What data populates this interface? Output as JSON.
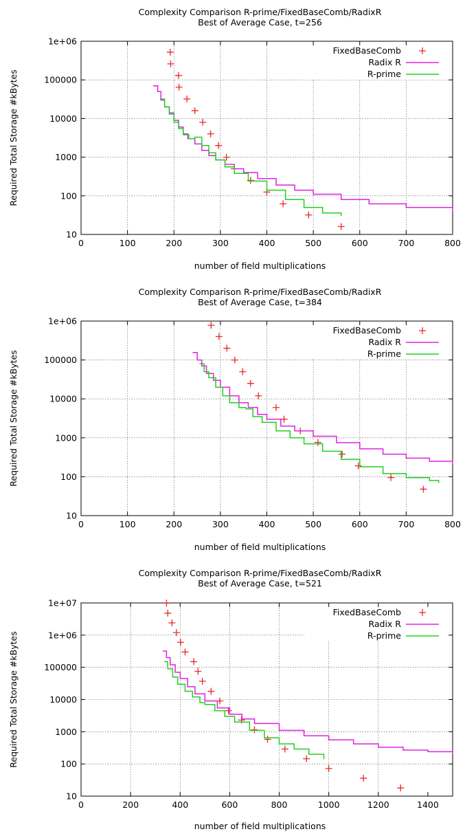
{
  "chart_data": [
    {
      "type": "scatter",
      "title": "Complexity Comparison R-prime/FixedBaseComb/RadixR",
      "subtitle": "Best of Average Case, t=256",
      "xlabel": "number of field multiplications",
      "ylabel": "Required Total Storage #kBytes",
      "xlim": [
        0,
        800
      ],
      "ylim": [
        10,
        1000000
      ],
      "yscale": "log",
      "xticks": [
        0,
        100,
        200,
        300,
        400,
        500,
        600,
        700,
        800
      ],
      "xtick_labels": [
        "0",
        "100",
        "200",
        "300",
        "400",
        "500",
        "600",
        "700",
        "800"
      ],
      "yticks": [
        10,
        100,
        1000,
        10000,
        100000,
        1000000
      ],
      "ytick_labels": [
        "10",
        "100",
        "1000",
        "10000",
        "100000",
        "1e+06"
      ],
      "grid": true,
      "legend": "top-right",
      "series": [
        {
          "name": "FixedBaseComb",
          "style": "points",
          "color": "#e8282a",
          "x": [
            192,
            193,
            210,
            211,
            228,
            245,
            262,
            279,
            296,
            313,
            330,
            365,
            400,
            435,
            490,
            560
          ],
          "y": [
            520000,
            260000,
            130000,
            65000,
            32000,
            16000,
            8000,
            4000,
            2000,
            1000,
            500,
            250,
            125,
            62,
            32,
            16
          ]
        },
        {
          "name": "Radix R",
          "style": "line",
          "color": "#e020e0",
          "x": [
            155,
            165,
            172,
            180,
            190,
            200,
            210,
            220,
            230,
            245,
            260,
            275,
            290,
            310,
            330,
            350,
            380,
            420,
            460,
            500,
            560,
            620,
            700,
            800
          ],
          "y": [
            70000,
            50000,
            30000,
            20000,
            14000,
            9000,
            6000,
            4000,
            3000,
            2200,
            1500,
            1100,
            850,
            650,
            500,
            400,
            280,
            190,
            140,
            110,
            80,
            62,
            50,
            41
          ]
        },
        {
          "name": "R-prime",
          "style": "line",
          "color": "#20d020",
          "x": [
            170,
            180,
            190,
            200,
            210,
            220,
            232,
            245,
            260,
            275,
            290,
            310,
            330,
            360,
            400,
            440,
            480,
            520,
            560
          ],
          "y": [
            32000,
            20000,
            13000,
            8000,
            5500,
            3800,
            3000,
            3300,
            2000,
            1300,
            850,
            560,
            380,
            240,
            140,
            80,
            50,
            36,
            30
          ]
        }
      ]
    },
    {
      "type": "scatter",
      "title": "Complexity Comparison R-prime/FixedBaseComb/RadixR",
      "subtitle": "Best of Average Case, t=384",
      "xlabel": "number of field multiplications",
      "ylabel": "Required Total Storage #kBytes",
      "xlim": [
        0,
        800
      ],
      "ylim": [
        10,
        1000000
      ],
      "yscale": "log",
      "xticks": [
        0,
        100,
        200,
        300,
        400,
        500,
        600,
        700,
        800
      ],
      "xtick_labels": [
        "0",
        "100",
        "200",
        "300",
        "400",
        "500",
        "600",
        "700",
        "800"
      ],
      "yticks": [
        10,
        100,
        1000,
        10000,
        100000,
        1000000
      ],
      "ytick_labels": [
        "10",
        "100",
        "1000",
        "10000",
        "100000",
        "1e+06"
      ],
      "grid": true,
      "legend": "top-right",
      "series": [
        {
          "name": "FixedBaseComb",
          "style": "points",
          "color": "#e8282a",
          "x": [
            280,
            297,
            314,
            331,
            348,
            365,
            382,
            420,
            437,
            472,
            510,
            562,
            597,
            667,
            737
          ],
          "y": [
            780000,
            400000,
            200000,
            100000,
            50000,
            25000,
            12000,
            6000,
            3000,
            1500,
            760,
            380,
            190,
            95,
            48
          ]
        },
        {
          "name": "Radix R",
          "style": "line",
          "color": "#e020e0",
          "x": [
            240,
            250,
            260,
            270,
            285,
            300,
            320,
            340,
            360,
            380,
            400,
            430,
            460,
            500,
            550,
            600,
            650,
            700,
            750,
            800
          ],
          "y": [
            155000,
            100000,
            70000,
            45000,
            30000,
            20000,
            12000,
            8000,
            6000,
            4000,
            3000,
            2000,
            1500,
            1100,
            750,
            520,
            380,
            300,
            250,
            210
          ]
        },
        {
          "name": "R-prime",
          "style": "line",
          "color": "#20d020",
          "x": [
            255,
            265,
            275,
            290,
            305,
            320,
            340,
            355,
            370,
            390,
            420,
            450,
            480,
            520,
            560,
            600,
            650,
            700,
            750,
            770
          ],
          "y": [
            80000,
            50000,
            35000,
            20000,
            12000,
            8000,
            6000,
            5500,
            3500,
            2500,
            1500,
            1000,
            700,
            450,
            280,
            180,
            120,
            95,
            80,
            70
          ]
        }
      ]
    },
    {
      "type": "scatter",
      "title": "Complexity Comparison R-prime/FixedBaseComb/RadixR",
      "subtitle": "Best of Average Case, t=521",
      "xlabel": "number of field multiplications",
      "ylabel": "Required Total Storage #kBytes",
      "xlim": [
        0,
        1500
      ],
      "ylim": [
        10,
        10000000
      ],
      "yscale": "log",
      "xticks": [
        0,
        200,
        400,
        600,
        800,
        1000,
        1200,
        1400
      ],
      "xtick_labels": [
        "0",
        "200",
        "400",
        "600",
        "800",
        "1000",
        "1200",
        "1400"
      ],
      "yticks": [
        10,
        100,
        1000,
        10000,
        100000,
        1000000,
        10000000
      ],
      "ytick_labels": [
        "10",
        "100",
        "1000",
        "10000",
        "100000",
        "1e+06",
        "1e+07"
      ],
      "grid": true,
      "legend": "top-right",
      "series": [
        {
          "name": "FixedBaseComb",
          "style": "points",
          "color": "#e8282a",
          "x": [
            345,
            350,
            367,
            385,
            402,
            420,
            455,
            472,
            490,
            525,
            560,
            595,
            648,
            700,
            753,
            823,
            910,
            1000,
            1140,
            1290
          ],
          "y": [
            9800000,
            4800000,
            2400000,
            1200000,
            600000,
            300000,
            150000,
            75000,
            37000,
            18000,
            9000,
            4500,
            2300,
            1150,
            580,
            290,
            145,
            72,
            36,
            18
          ]
        },
        {
          "name": "Radix R",
          "style": "line",
          "color": "#e020e0",
          "x": [
            330,
            345,
            360,
            380,
            400,
            430,
            460,
            500,
            550,
            600,
            650,
            700,
            800,
            900,
            1000,
            1100,
            1200,
            1300,
            1400,
            1500
          ],
          "y": [
            320000,
            200000,
            120000,
            70000,
            45000,
            25000,
            15000,
            9000,
            5500,
            3500,
            2500,
            1800,
            1100,
            750,
            560,
            420,
            330,
            270,
            240,
            210
          ]
        },
        {
          "name": "R-prime",
          "style": "line",
          "color": "#20d020",
          "x": [
            335,
            350,
            370,
            390,
            420,
            450,
            480,
            500,
            540,
            580,
            620,
            680,
            740,
            800,
            860,
            920,
            980
          ],
          "y": [
            150000,
            90000,
            50000,
            30000,
            18000,
            12000,
            8000,
            7000,
            4500,
            3000,
            2000,
            1100,
            650,
            420,
            290,
            200,
            140
          ]
        }
      ]
    }
  ]
}
